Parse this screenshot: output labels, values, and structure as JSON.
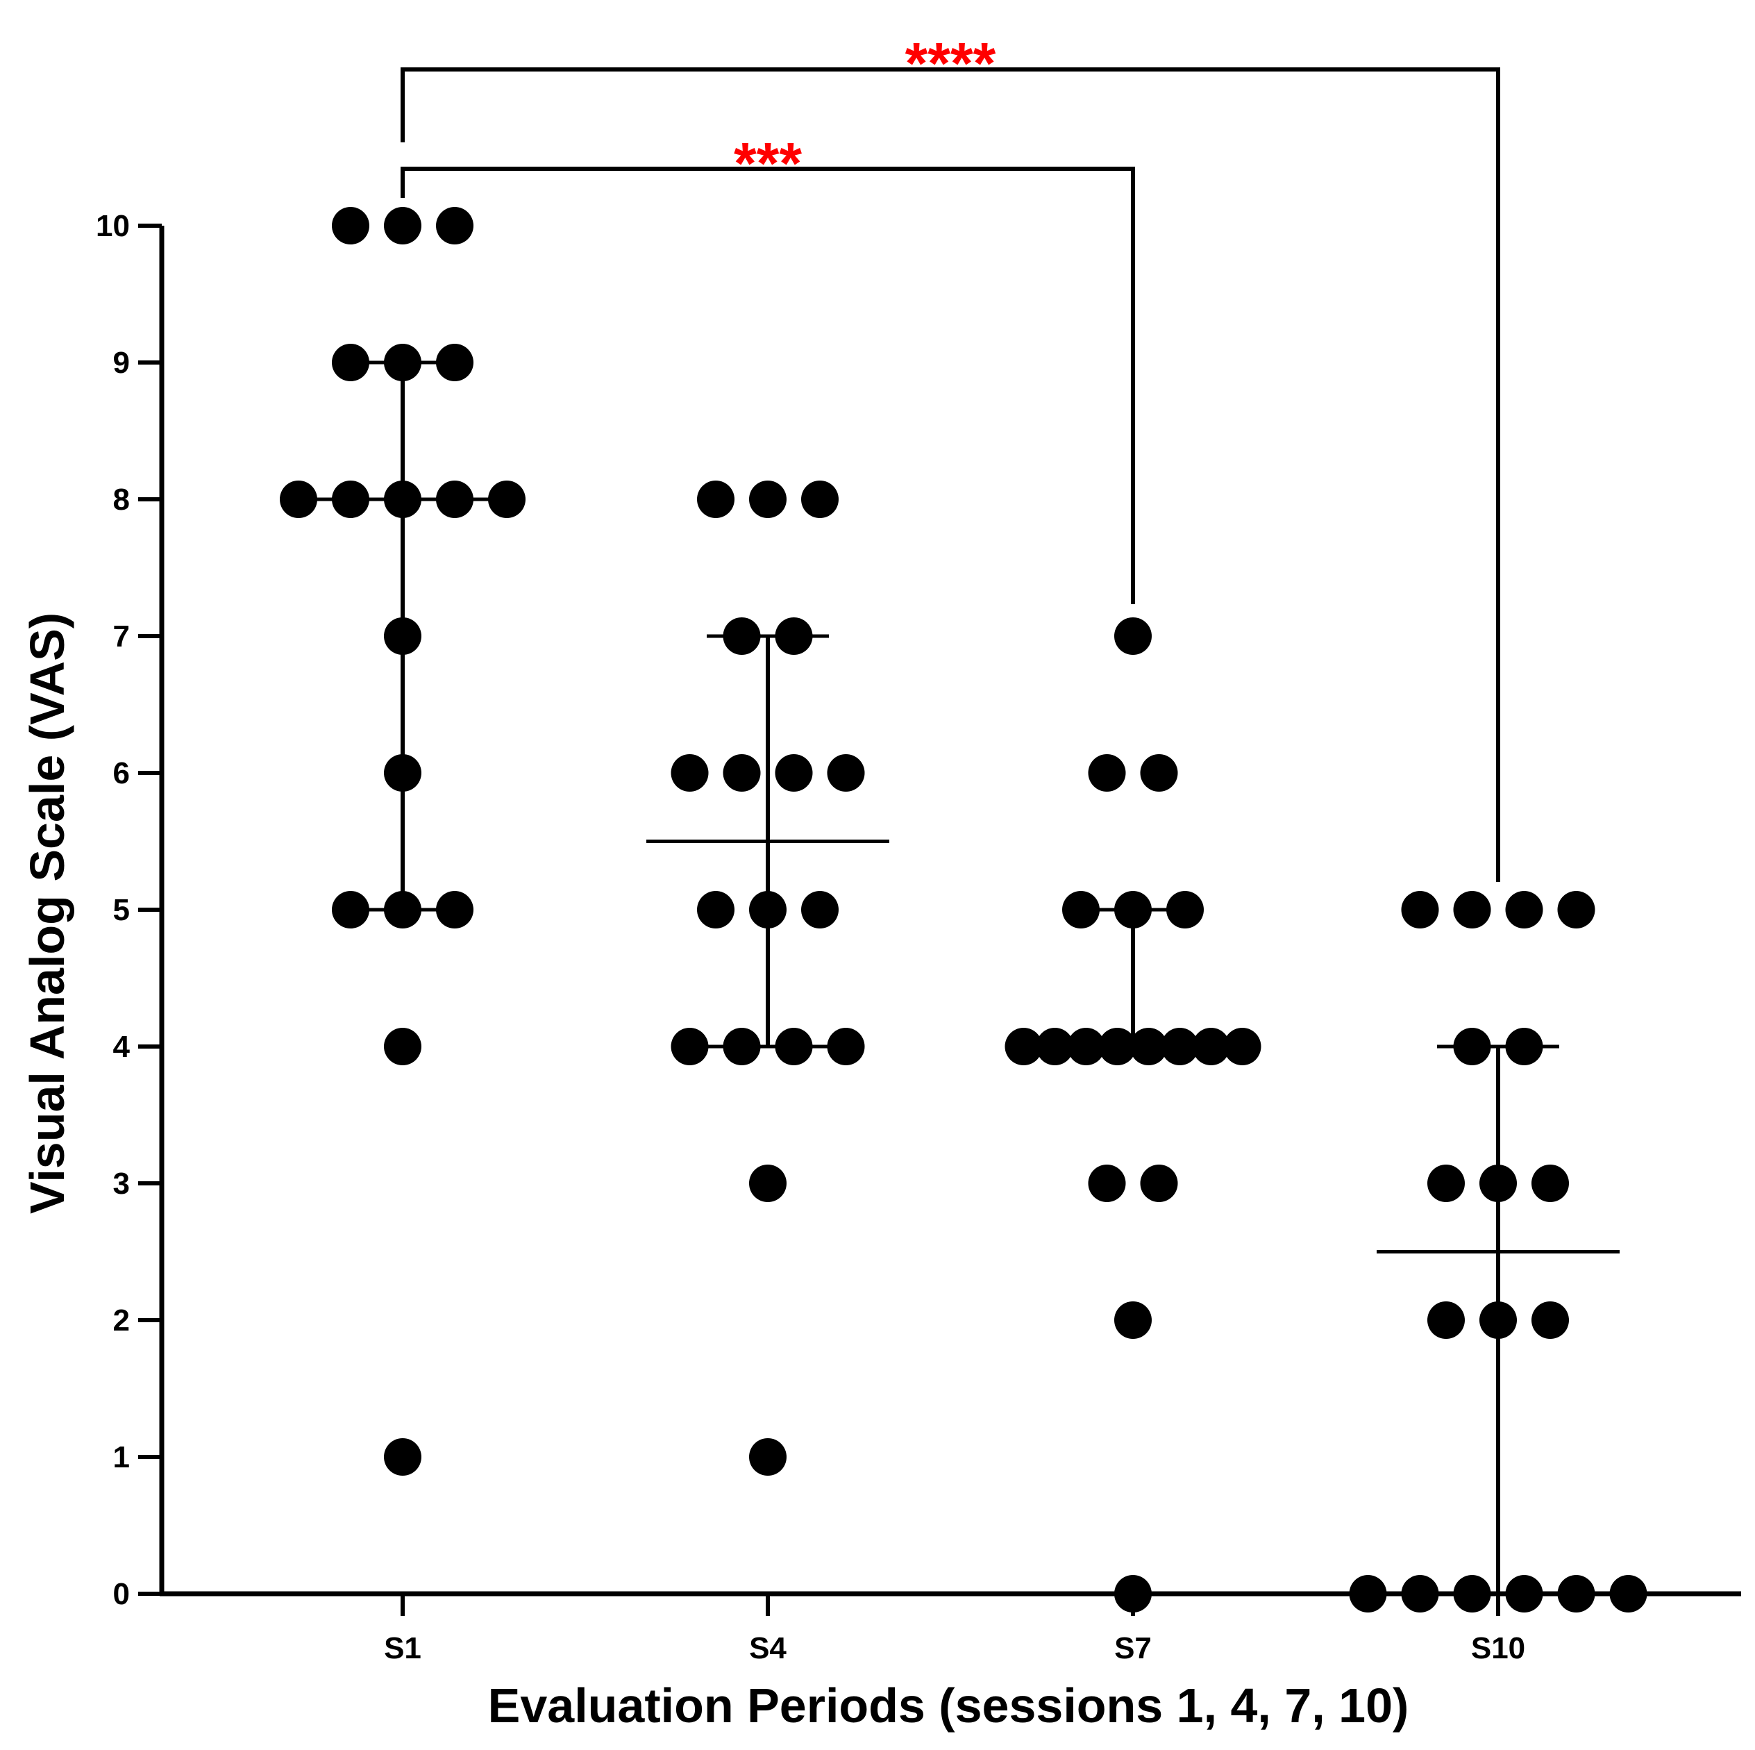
{
  "chart_data": {
    "type": "scatter",
    "subtype": "dot-plot with median and interquartile range",
    "xlabel": "Evaluation Periods (sessions 1, 4, 7, 10)",
    "ylabel": "Visual Analog Scale (VAS)",
    "ylim": [
      0,
      10
    ],
    "yticks": [
      "0",
      "1",
      "2",
      "3",
      "4",
      "5",
      "6",
      "7",
      "8",
      "9",
      "10"
    ],
    "categories": [
      "S1",
      "S4",
      "S7",
      "S10"
    ],
    "groups": [
      {
        "name": "S1",
        "values": [
          10,
          10,
          10,
          9,
          9,
          9,
          8,
          8,
          8,
          8,
          8,
          7,
          6,
          5,
          5,
          5,
          4,
          1
        ],
        "median": 8,
        "q1": 5,
        "q3": 9
      },
      {
        "name": "S4",
        "values": [
          8,
          8,
          8,
          7,
          7,
          6,
          6,
          6,
          6,
          5,
          5,
          5,
          4,
          4,
          4,
          4,
          3,
          1
        ],
        "median": 5.5,
        "q1": 4,
        "q3": 7
      },
      {
        "name": "S7",
        "values": [
          7,
          6,
          6,
          5,
          5,
          5,
          4,
          4,
          4,
          4,
          4,
          4,
          4,
          4,
          3,
          3,
          2,
          0
        ],
        "median": 4,
        "q1": 4,
        "q3": 5
      },
      {
        "name": "S10",
        "values": [
          5,
          5,
          5,
          5,
          4,
          4,
          3,
          3,
          3,
          2,
          2,
          2,
          0,
          0,
          0,
          0,
          0,
          0
        ],
        "median": 2.5,
        "q1": 0,
        "q3": 4
      }
    ],
    "comparisons": [
      {
        "from": "S1",
        "to": "S7",
        "label": "***"
      },
      {
        "from": "S1",
        "to": "S10",
        "label": "****"
      }
    ],
    "colors": {
      "points": "#000000",
      "axes": "#000000",
      "significance": "#ff0000"
    }
  }
}
